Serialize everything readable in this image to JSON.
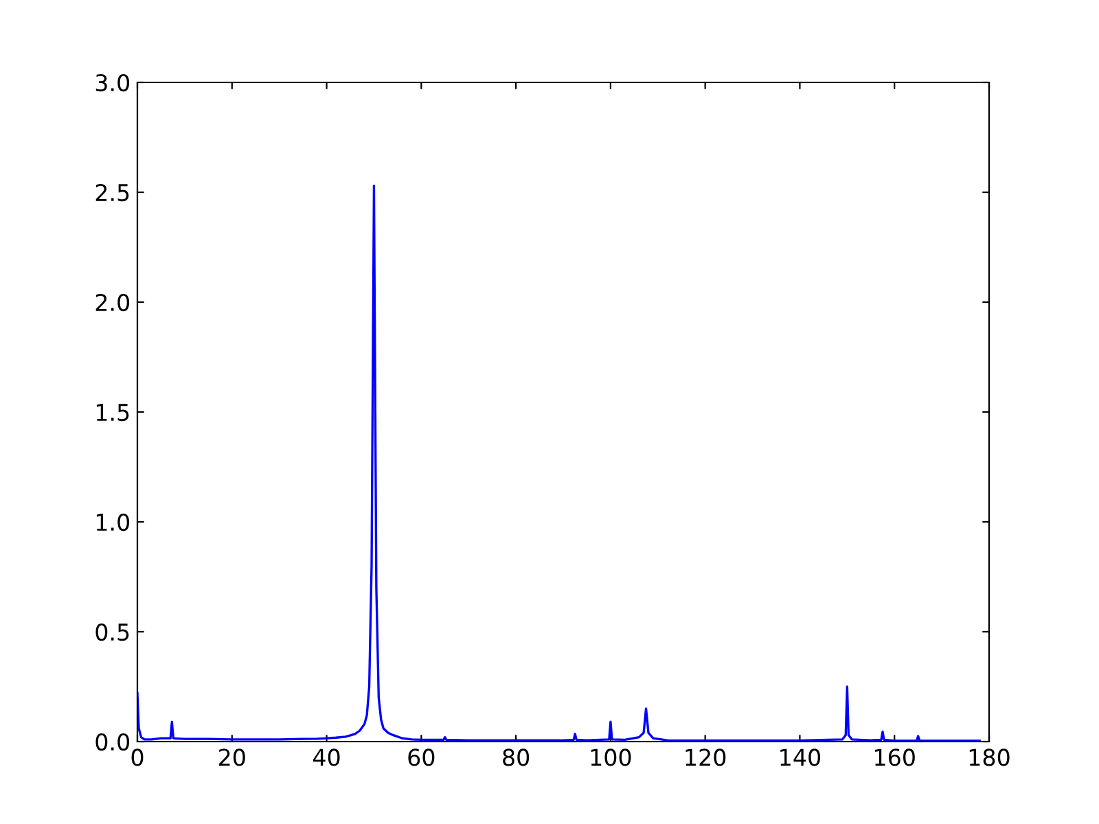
{
  "chart_data": {
    "type": "line",
    "xlim": [
      0,
      180
    ],
    "ylim": [
      0,
      3.0
    ],
    "xticks": [
      0,
      20,
      40,
      60,
      80,
      100,
      120,
      140,
      160,
      180
    ],
    "yticks": [
      {
        "value": 0,
        "label": "0.0"
      },
      {
        "value": 0.5,
        "label": "0.5"
      },
      {
        "value": 1.0,
        "label": "1.0"
      },
      {
        "value": 1.5,
        "label": "1.5"
      },
      {
        "value": 2.0,
        "label": "2.0"
      },
      {
        "value": 2.5,
        "label": "2.5"
      },
      {
        "value": 3.0,
        "label": "3.0"
      }
    ],
    "grid": false,
    "marker": "none",
    "line_style": "solid",
    "series": [
      {
        "color": "#0000ff",
        "x": [
          0,
          0.3,
          0.8,
          1.5,
          3,
          5,
          7,
          7.3,
          7.6,
          10,
          15,
          20,
          25,
          30,
          35,
          38,
          40,
          42,
          44,
          46,
          47,
          48,
          48.5,
          49,
          49.5,
          50,
          50.5,
          51,
          51.5,
          52,
          53,
          54,
          56,
          58,
          60,
          64.7,
          65,
          65.3,
          70,
          80,
          90,
          92.2,
          92.5,
          92.8,
          95,
          99.7,
          100,
          100.3,
          103,
          106,
          107,
          107.5,
          108,
          109,
          112,
          120,
          130,
          140,
          149,
          149.7,
          150,
          150.3,
          151,
          155,
          157.2,
          157.5,
          157.8,
          160,
          164.7,
          165,
          165.3,
          170,
          175,
          178
        ],
        "values": [
          0.22,
          0.06,
          0.02,
          0.01,
          0.01,
          0.015,
          0.015,
          0.09,
          0.015,
          0.012,
          0.012,
          0.01,
          0.01,
          0.01,
          0.012,
          0.013,
          0.015,
          0.018,
          0.022,
          0.035,
          0.05,
          0.08,
          0.12,
          0.25,
          0.8,
          2.53,
          0.7,
          0.2,
          0.1,
          0.06,
          0.04,
          0.03,
          0.015,
          0.01,
          0.008,
          0.008,
          0.02,
          0.008,
          0.006,
          0.006,
          0.006,
          0.008,
          0.035,
          0.008,
          0.006,
          0.01,
          0.09,
          0.01,
          0.008,
          0.02,
          0.04,
          0.15,
          0.04,
          0.015,
          0.006,
          0.005,
          0.005,
          0.005,
          0.01,
          0.03,
          0.25,
          0.03,
          0.01,
          0.006,
          0.008,
          0.045,
          0.008,
          0.004,
          0.004,
          0.025,
          0.004,
          0.004,
          0.004,
          0.004
        ]
      }
    ]
  }
}
